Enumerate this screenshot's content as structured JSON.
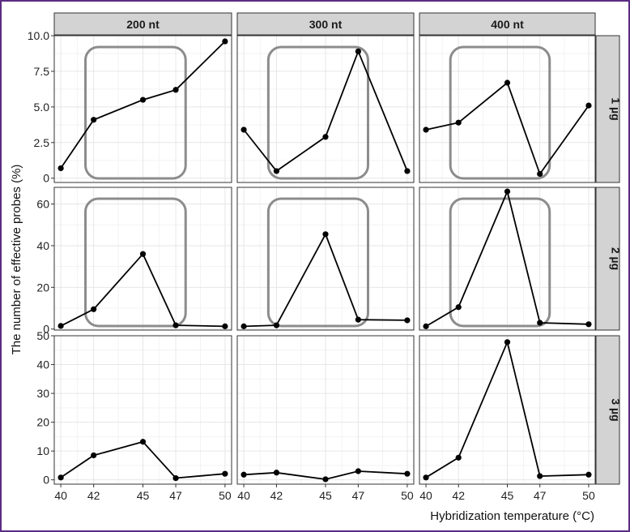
{
  "colors": {
    "frame": "#5b2c83",
    "strip_fill": "#d3d3d3",
    "panel_border": "#333333",
    "grid_major": "#e6e6e6",
    "grid_minor": "#f3f3f3",
    "line": "#000000",
    "highlight_box": "#8c8c8c"
  },
  "chart_data": {
    "type": "line",
    "layout": "facet_grid",
    "xlabel": "Hybridization temperature (°C)",
    "ylabel": "The number of effective probes (%)",
    "x": [
      40,
      42,
      45,
      47,
      50
    ],
    "x_ticks": [
      "40",
      "42",
      "45",
      "47",
      "50"
    ],
    "xlim": [
      39.6,
      50.4
    ],
    "columns": [
      "200 nt",
      "300 nt",
      "400 nt"
    ],
    "rows": [
      {
        "label": "1 µg",
        "ylim": [
          -0.3,
          10.0
        ],
        "y_ticks": [
          {
            "v": 0,
            "t": "0"
          },
          {
            "v": 2.5,
            "t": "2.5"
          },
          {
            "v": 5,
            "t": "5.0"
          },
          {
            "v": 7.5,
            "t": "7.5"
          },
          {
            "v": 10,
            "t": "10.0"
          }
        ],
        "series": [
          {
            "column": "200 nt",
            "values": [
              0.7,
              4.1,
              5.5,
              6.2,
              9.6
            ]
          },
          {
            "column": "300 nt",
            "values": [
              3.4,
              0.5,
              2.9,
              8.9,
              0.5
            ]
          },
          {
            "column": "400 nt",
            "values": [
              3.4,
              3.9,
              6.7,
              0.3,
              5.1
            ]
          }
        ],
        "highlight": [
          true,
          true,
          true
        ]
      },
      {
        "label": "2 µg",
        "ylim": [
          -0.5,
          68
        ],
        "y_ticks": [
          {
            "v": 0,
            "t": "0"
          },
          {
            "v": 20,
            "t": "20"
          },
          {
            "v": 40,
            "t": "40"
          },
          {
            "v": 60,
            "t": "60"
          }
        ],
        "series": [
          {
            "column": "200 nt",
            "values": [
              1.5,
              9.5,
              36,
              1.8,
              1.3
            ]
          },
          {
            "column": "300 nt",
            "values": [
              1.3,
              1.8,
              45.5,
              4.5,
              4.2
            ]
          },
          {
            "column": "400 nt",
            "values": [
              1.3,
              10.5,
              66,
              3.0,
              2.3
            ]
          }
        ],
        "highlight": [
          true,
          true,
          true
        ]
      },
      {
        "label": "3 µg",
        "ylim": [
          -1.5,
          50
        ],
        "y_ticks": [
          {
            "v": 0,
            "t": "0"
          },
          {
            "v": 10,
            "t": "10"
          },
          {
            "v": 20,
            "t": "20"
          },
          {
            "v": 30,
            "t": "30"
          },
          {
            "v": 40,
            "t": "40"
          },
          {
            "v": 50,
            "t": "50"
          }
        ],
        "series": [
          {
            "column": "200 nt",
            "values": [
              0.8,
              8.5,
              13.2,
              0.6,
              2.1
            ]
          },
          {
            "column": "300 nt",
            "values": [
              1.8,
              2.5,
              0.2,
              3.0,
              2.1
            ]
          },
          {
            "column": "400 nt",
            "values": [
              0.8,
              7.7,
              47.8,
              1.3,
              1.8
            ]
          }
        ],
        "highlight": [
          false,
          false,
          false
        ]
      }
    ],
    "grid": true
  }
}
